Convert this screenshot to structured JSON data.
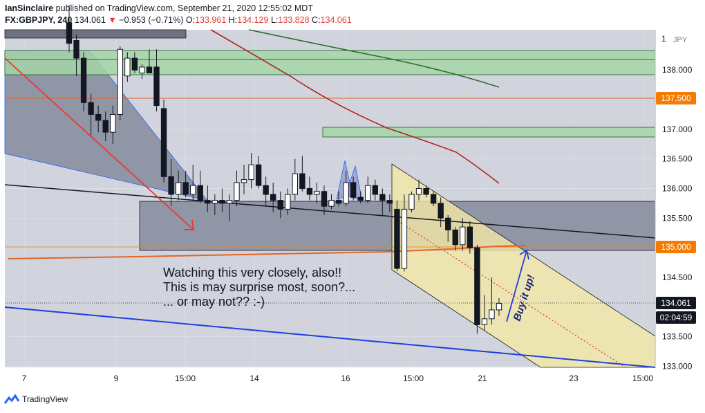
{
  "header": {
    "author": "IanSinclaire",
    "published": "published on TradingView.com, September 21, 2020 12:55:02 MDT",
    "symbol": "FX:GBPJPY, 240",
    "last": "134.061",
    "change_arrow": "▼",
    "change": "−0.953 (−0.71%)",
    "open_label": "O:",
    "open": "133.961",
    "high_label": "H:",
    "high": "134.129",
    "low_label": "L:",
    "low": "133.828",
    "close_label": "C:",
    "close": "134.061"
  },
  "footer": {
    "brand": "TradingView",
    "logo_icon": "tradingview-logo-icon"
  },
  "colors": {
    "background": "#d1d4dc",
    "up_candle": "#ffffff",
    "down_candle": "#131722",
    "red_arrow": "#e53935",
    "blue_line": "#1e3fe0",
    "orange_line": "#e5631f",
    "dark_red_ma": "#b22222",
    "green_ma": "#2e6b2e",
    "green_zone": "#a5d6a7",
    "yellow_channel": "#f3e7a6",
    "grey_zone": "#8a8fa0",
    "price_tag_orange": "#f57c00"
  },
  "chart_data": {
    "type": "candlestick",
    "currency_label": "JPY",
    "y_ticks": [
      "138.000",
      "137.000",
      "136.500",
      "136.000",
      "135.500",
      "134.500",
      "133.500",
      "133.000"
    ],
    "y_tick_values": [
      138.0,
      137.0,
      136.5,
      136.0,
      135.5,
      134.5,
      133.5,
      133.0
    ],
    "ylim": [
      132.98,
      138.68
    ],
    "x_ticks": [
      "7",
      "9",
      "15:00",
      "14",
      "16",
      "15:00",
      "21",
      "23",
      "15:00"
    ],
    "price_tags": [
      {
        "label": "137.500",
        "value": 137.5,
        "style": "orange"
      },
      {
        "label": "135.000",
        "value": 135.0,
        "style": "orange"
      },
      {
        "label": "134.061",
        "value": 134.061,
        "style": "dark"
      },
      {
        "label": "02:04:59",
        "style": "dark-countdown"
      }
    ],
    "candles": [
      {
        "o": 138.8,
        "h": 139.1,
        "l": 138.3,
        "c": 138.45
      },
      {
        "o": 138.5,
        "h": 138.6,
        "l": 137.9,
        "c": 138.2
      },
      {
        "o": 138.2,
        "h": 138.3,
        "l": 137.3,
        "c": 137.45
      },
      {
        "o": 137.45,
        "h": 137.6,
        "l": 136.9,
        "c": 137.25
      },
      {
        "o": 137.25,
        "h": 137.4,
        "l": 136.95,
        "c": 137.15
      },
      {
        "o": 137.15,
        "h": 137.3,
        "l": 136.8,
        "c": 136.95
      },
      {
        "o": 136.95,
        "h": 137.4,
        "l": 136.75,
        "c": 137.25
      },
      {
        "o": 137.25,
        "h": 138.4,
        "l": 137.15,
        "c": 138.35
      },
      {
        "o": 137.9,
        "h": 138.3,
        "l": 137.8,
        "c": 138.2
      },
      {
        "o": 138.2,
        "h": 138.3,
        "l": 137.95,
        "c": 138.0
      },
      {
        "o": 137.95,
        "h": 138.1,
        "l": 137.85,
        "c": 138.05
      },
      {
        "o": 138.05,
        "h": 138.35,
        "l": 137.95,
        "c": 137.95
      },
      {
        "o": 138.05,
        "h": 138.35,
        "l": 137.3,
        "c": 137.4
      },
      {
        "o": 137.35,
        "h": 137.5,
        "l": 136.1,
        "c": 136.2
      },
      {
        "o": 136.2,
        "h": 136.5,
        "l": 135.7,
        "c": 135.9
      },
      {
        "o": 135.9,
        "h": 136.3,
        "l": 135.8,
        "c": 136.1
      },
      {
        "o": 136.1,
        "h": 136.3,
        "l": 135.85,
        "c": 135.9
      },
      {
        "o": 135.9,
        "h": 136.4,
        "l": 135.8,
        "c": 136.05
      },
      {
        "o": 136.05,
        "h": 136.3,
        "l": 135.75,
        "c": 135.8
      },
      {
        "o": 135.8,
        "h": 136.05,
        "l": 135.6,
        "c": 135.75
      },
      {
        "o": 135.75,
        "h": 135.9,
        "l": 135.55,
        "c": 135.8
      },
      {
        "o": 135.8,
        "h": 136.0,
        "l": 135.6,
        "c": 135.75
      },
      {
        "o": 135.75,
        "h": 135.9,
        "l": 135.45,
        "c": 135.8
      },
      {
        "o": 135.8,
        "h": 136.3,
        "l": 135.7,
        "c": 136.1
      },
      {
        "o": 136.1,
        "h": 136.4,
        "l": 135.9,
        "c": 136.15
      },
      {
        "o": 136.15,
        "h": 136.6,
        "l": 136.0,
        "c": 136.4
      },
      {
        "o": 136.4,
        "h": 136.55,
        "l": 136.0,
        "c": 136.05
      },
      {
        "o": 136.05,
        "h": 136.2,
        "l": 135.7,
        "c": 135.9
      },
      {
        "o": 135.9,
        "h": 136.1,
        "l": 135.6,
        "c": 135.8
      },
      {
        "o": 135.8,
        "h": 135.95,
        "l": 135.5,
        "c": 135.65
      },
      {
        "o": 135.65,
        "h": 136.0,
        "l": 135.55,
        "c": 135.9
      },
      {
        "o": 135.9,
        "h": 136.5,
        "l": 135.8,
        "c": 136.25
      },
      {
        "o": 136.25,
        "h": 136.55,
        "l": 135.95,
        "c": 136.0
      },
      {
        "o": 136.0,
        "h": 136.2,
        "l": 135.8,
        "c": 135.9
      },
      {
        "o": 135.9,
        "h": 136.1,
        "l": 135.75,
        "c": 135.95
      },
      {
        "o": 135.95,
        "h": 136.05,
        "l": 135.55,
        "c": 135.7
      },
      {
        "o": 135.7,
        "h": 135.9,
        "l": 135.65,
        "c": 135.8
      },
      {
        "o": 135.8,
        "h": 135.95,
        "l": 135.7,
        "c": 135.75
      },
      {
        "o": 135.75,
        "h": 136.3,
        "l": 135.7,
        "c": 136.1
      },
      {
        "o": 136.1,
        "h": 136.2,
        "l": 135.8,
        "c": 135.85
      },
      {
        "o": 135.85,
        "h": 135.95,
        "l": 135.75,
        "c": 135.8
      },
      {
        "o": 135.8,
        "h": 136.2,
        "l": 135.75,
        "c": 136.05
      },
      {
        "o": 136.05,
        "h": 136.15,
        "l": 135.8,
        "c": 135.9
      },
      {
        "o": 135.9,
        "h": 136.0,
        "l": 135.55,
        "c": 135.8
      },
      {
        "o": 135.8,
        "h": 135.9,
        "l": 135.6,
        "c": 135.75
      },
      {
        "o": 135.65,
        "h": 135.8,
        "l": 134.6,
        "c": 134.65
      },
      {
        "o": 134.65,
        "h": 135.9,
        "l": 134.6,
        "c": 135.65
      },
      {
        "o": 135.65,
        "h": 135.95,
        "l": 135.6,
        "c": 135.9
      },
      {
        "o": 135.9,
        "h": 136.15,
        "l": 135.8,
        "c": 136.0
      },
      {
        "o": 136.0,
        "h": 136.05,
        "l": 135.85,
        "c": 135.9
      },
      {
        "o": 135.9,
        "h": 135.95,
        "l": 135.7,
        "c": 135.75
      },
      {
        "o": 135.75,
        "h": 135.85,
        "l": 135.35,
        "c": 135.5
      },
      {
        "o": 135.5,
        "h": 135.55,
        "l": 135.1,
        "c": 135.3
      },
      {
        "o": 135.3,
        "h": 135.35,
        "l": 134.95,
        "c": 135.05
      },
      {
        "o": 135.05,
        "h": 135.5,
        "l": 134.95,
        "c": 135.35
      },
      {
        "o": 135.35,
        "h": 135.45,
        "l": 134.9,
        "c": 135.0
      },
      {
        "o": 135.0,
        "h": 135.05,
        "l": 133.55,
        "c": 133.7
      },
      {
        "o": 133.7,
        "h": 134.2,
        "l": 133.6,
        "c": 133.8
      },
      {
        "o": 133.8,
        "h": 134.5,
        "l": 133.7,
        "c": 133.95
      },
      {
        "o": 133.95,
        "h": 134.15,
        "l": 133.85,
        "c": 134.06
      }
    ]
  },
  "annotations": {
    "note_line1": "Watching this very closely, also!!",
    "note_line2": "This is may surprise most, soon?...",
    "note_line3": "... or may not?? :-)",
    "buy_text": "Buy it up!"
  }
}
